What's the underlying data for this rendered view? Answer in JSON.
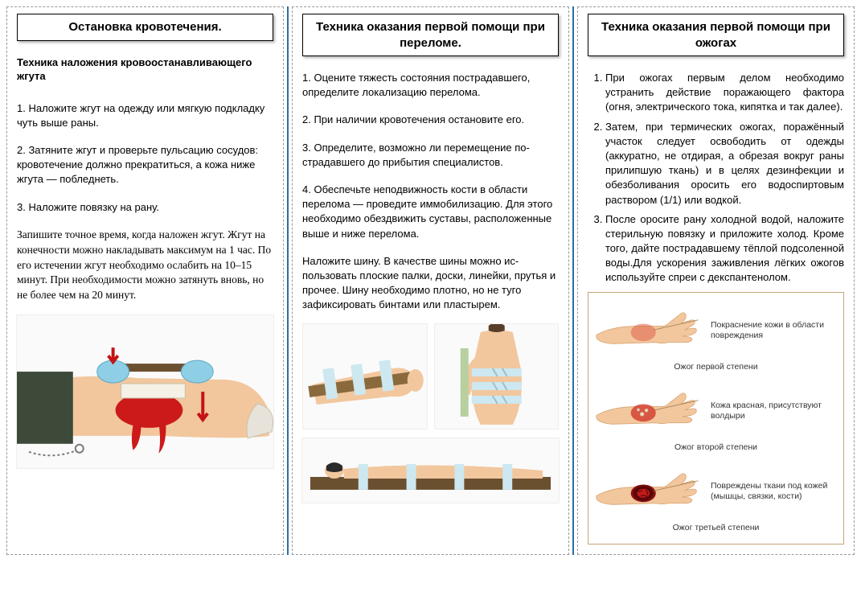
{
  "colors": {
    "separator": "#2a6ea6",
    "border_dash": "#999999",
    "title_shadow": "rgba(0,0,0,0.3)",
    "burn_panel_border": "#c9a57a",
    "skin": "#f2c79e",
    "skin_dark": "#d9a26f",
    "bandage": "#cde8f0",
    "blood": "#cc1a1a",
    "wood": "#6b5030",
    "glove": "#8fcfe6",
    "arrow": "#c41414"
  },
  "col1": {
    "title": "Остановка кровотечения.",
    "subtitle": "Техника наложения кровоостанавливающего жгута",
    "items": [
      "1.  Наложите жгут на одежду или мягкую под­кладку чуть выше раны.",
      "2.  Затяните жгут и проверьте пульсацию сосу­дов: кровотечение должно прекратиться, а кожа ниже жгута — побледнеть.",
      "3.  Наложите повязку на рану."
    ],
    "note": "Запишите точное время, когда наложен жгут. Жгут на конечности можно накладывать максимум на 1 час. По его истечении жгут необходимо осла­бить на 10–15 минут. При необходимости можно затянуть вновь, но не более чем на 20 минут.",
    "illustration_alt": "Наложение жгута на ногу"
  },
  "col2": {
    "title": "Техника оказания первой помощи при переломе.",
    "items": [
      "1.  Оцените тяжесть состояния пострадавшего, определите локализацию перелома.",
      "2.  При наличии кровотечения остановите его.",
      "3.  Определите, возможно ли перемещение по­страдавшего до прибытия специалистов.",
      "4.  Обеспечьте неподвижность кости в области перелома — проведите иммобилизацию. Для этого необходимо обездвижить суставы, распо­ложенные выше и ниже перелома."
    ],
    "note": "Наложите шину. В качестве шины можно ис­пользовать плоские палки, доски, линейки, пру­тья и прочее. Шину необходимо плотно, но не туго зафиксировать бинтами или пластырем.",
    "illustration_alt_top": "Шина на предплечье и фиксация руки к туловищу",
    "illustration_alt_bottom": "Пострадавший на носилочной доске"
  },
  "col3": {
    "title": "Техника оказания первой помощи при ожогах",
    "items": [
      "При ожогах первым делом необходимо устранить действие поражающего факто­ра (огня, электрического тока, кипятка и так далее).",
      "Затем, при термических ожогах, поражён­ный участок следует освободить от одеж­ды (аккуратно, не отдирая, а обрезая во­круг раны прилипшую ткань) и в целях де­зинфекции и обезболивания оросить его водоспиртовым раствором (1/1) или вод­кой.",
      "После оросите рану холодной водой, на­ложите стерильную повязку и приложите холод. Кроме того, дайте пострадавшему тёплой подсоленной воды.Для ускорения заживления лёгких ожогов используйте спреи с декспантенолом."
    ],
    "burns": [
      {
        "label": "Покраснение кожи в области повреждения",
        "caption": "Ожог первой степени",
        "wound_color": "#e06048",
        "wound_opacity": 0.55,
        "extra": "none"
      },
      {
        "label": "Кожа красная, присутствуют волдыри",
        "caption": "Ожог второй степени",
        "wound_color": "#d23a2a",
        "wound_opacity": 0.8,
        "extra": "blisters"
      },
      {
        "label": "Повреждены ткани под кожей (мышцы, связки, кости)",
        "caption": "Ожог третьей степени",
        "wound_color": "#8a1010",
        "wound_opacity": 1.0,
        "extra": "deep"
      }
    ]
  }
}
